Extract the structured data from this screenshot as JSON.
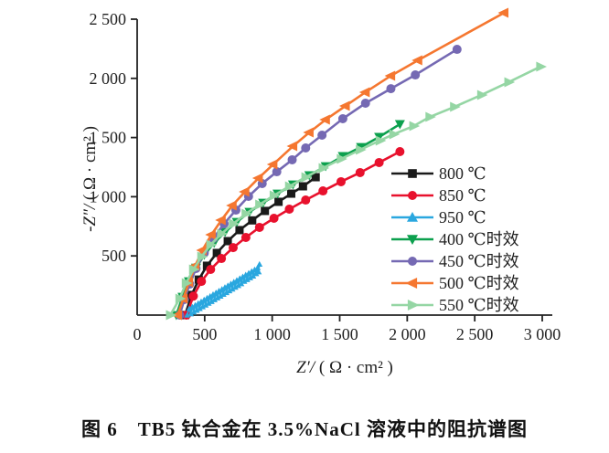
{
  "figure": {
    "caption": "图 6　TB5 钛合金在 3.5%NaCl 溶液中的阻抗谱图"
  },
  "chart_data": {
    "type": "line",
    "subtype": "nyquist-impedance-scatter",
    "title": "",
    "xlabel_symbol": "Z′/",
    "xlabel_unit": "( Ω · cm² )",
    "ylabel_symbol": "-Z″/",
    "ylabel_unit": "( Ω · cm² )",
    "xlim": [
      0,
      3050
    ],
    "ylim": [
      0,
      2520
    ],
    "grid": "off",
    "legend_position": "inside-right",
    "x_ticks": {
      "values": [
        0,
        500,
        1000,
        1500,
        2000,
        2500,
        3000
      ],
      "labels": [
        "0",
        "500",
        "1 000",
        "1 500",
        "2 000",
        "2 500",
        "3 000"
      ]
    },
    "y_ticks": {
      "values": [
        500,
        1000,
        1500,
        2000,
        2500
      ],
      "labels": [
        "500",
        "1 000",
        "1 500",
        "2 000",
        "2 500"
      ]
    },
    "series": [
      {
        "label": "800 ℃",
        "color": "#1a1a1a",
        "marker": "square",
        "size": 4.5,
        "points": [
          [
            355,
            0
          ],
          [
            403,
            170
          ],
          [
            456,
            300
          ],
          [
            517,
            417
          ],
          [
            590,
            525
          ],
          [
            671,
            625
          ],
          [
            758,
            718
          ],
          [
            852,
            800
          ],
          [
            946,
            880
          ],
          [
            1047,
            957
          ],
          [
            1141,
            1026
          ],
          [
            1228,
            1088
          ],
          [
            1322,
            1165
          ]
        ]
      },
      {
        "label": "850 ℃",
        "color": "#e8112d",
        "marker": "circle",
        "size": 5,
        "points": [
          [
            365,
            0
          ],
          [
            416,
            160
          ],
          [
            476,
            285
          ],
          [
            544,
            386
          ],
          [
            624,
            478
          ],
          [
            711,
            570
          ],
          [
            805,
            656
          ],
          [
            906,
            741
          ],
          [
            1013,
            818
          ],
          [
            1127,
            895
          ],
          [
            1248,
            972
          ],
          [
            1376,
            1049
          ],
          [
            1510,
            1127
          ],
          [
            1651,
            1204
          ],
          [
            1792,
            1289
          ],
          [
            1946,
            1381
          ]
        ]
      },
      {
        "label": "950 ℃",
        "color": "#2aa7df",
        "marker": "tri-up",
        "size": 3.4,
        "points": [
          [
            370,
            0
          ],
          [
            386,
            55
          ],
          [
            397,
            10
          ],
          [
            408,
            70
          ],
          [
            419,
            25
          ],
          [
            430,
            85
          ],
          [
            441,
            40
          ],
          [
            452,
            100
          ],
          [
            463,
            55
          ],
          [
            474,
            115
          ],
          [
            485,
            70
          ],
          [
            496,
            130
          ],
          [
            507,
            85
          ],
          [
            518,
            145
          ],
          [
            529,
            100
          ],
          [
            540,
            160
          ],
          [
            551,
            115
          ],
          [
            562,
            175
          ],
          [
            573,
            130
          ],
          [
            584,
            190
          ],
          [
            595,
            145
          ],
          [
            606,
            205
          ],
          [
            617,
            160
          ],
          [
            628,
            220
          ],
          [
            639,
            175
          ],
          [
            650,
            235
          ],
          [
            661,
            190
          ],
          [
            672,
            250
          ],
          [
            683,
            205
          ],
          [
            694,
            265
          ],
          [
            705,
            220
          ],
          [
            716,
            280
          ],
          [
            727,
            235
          ],
          [
            738,
            295
          ],
          [
            749,
            250
          ],
          [
            760,
            310
          ],
          [
            771,
            265
          ],
          [
            782,
            325
          ],
          [
            793,
            285
          ],
          [
            804,
            340
          ],
          [
            815,
            300
          ],
          [
            826,
            355
          ],
          [
            837,
            315
          ],
          [
            848,
            370
          ],
          [
            859,
            330
          ],
          [
            870,
            385
          ],
          [
            881,
            350
          ],
          [
            892,
            400
          ],
          [
            900,
            365
          ],
          [
            906,
            430
          ]
        ]
      },
      {
        "label": "400 ℃时效",
        "color": "#0ca04e",
        "marker": "tri-down",
        "size": 5.5,
        "points": [
          [
            290,
            0
          ],
          [
            336,
            154
          ],
          [
            383,
            285
          ],
          [
            436,
            400
          ],
          [
            497,
            509
          ],
          [
            570,
            610
          ],
          [
            651,
            702
          ],
          [
            738,
            787
          ],
          [
            832,
            872
          ],
          [
            933,
            949
          ],
          [
            1040,
            1026
          ],
          [
            1154,
            1103
          ],
          [
            1275,
            1181
          ],
          [
            1396,
            1258
          ],
          [
            1523,
            1343
          ],
          [
            1658,
            1420
          ],
          [
            1792,
            1505
          ],
          [
            1946,
            1613
          ]
        ]
      },
      {
        "label": "450 ℃时效",
        "color": "#7569b3",
        "marker": "circle",
        "size": 5,
        "points": [
          [
            315,
            0
          ],
          [
            349,
            131
          ],
          [
            389,
            262
          ],
          [
            436,
            394
          ],
          [
            497,
            525
          ],
          [
            564,
            648
          ],
          [
            644,
            772
          ],
          [
            731,
            887
          ],
          [
            825,
            1003
          ],
          [
            926,
            1111
          ],
          [
            1034,
            1211
          ],
          [
            1148,
            1312
          ],
          [
            1248,
            1412
          ],
          [
            1369,
            1520
          ],
          [
            1523,
            1659
          ],
          [
            1691,
            1790
          ],
          [
            1879,
            1913
          ],
          [
            2060,
            2029
          ],
          [
            2369,
            2245
          ]
        ]
      },
      {
        "label": "500 ℃时效",
        "color": "#f57730",
        "marker": "tri-left",
        "size": 5.5,
        "points": [
          [
            300,
            0
          ],
          [
            342,
            139
          ],
          [
            383,
            278
          ],
          [
            430,
            417
          ],
          [
            483,
            548
          ],
          [
            550,
            679
          ],
          [
            624,
            802
          ],
          [
            705,
            926
          ],
          [
            799,
            1042
          ],
          [
            899,
            1157
          ],
          [
            1007,
            1273
          ],
          [
            1154,
            1427
          ],
          [
            1275,
            1543
          ],
          [
            1396,
            1651
          ],
          [
            1543,
            1767
          ],
          [
            1691,
            1883
          ],
          [
            1879,
            2022
          ],
          [
            2080,
            2153
          ],
          [
            2718,
            2554
          ]
        ]
      },
      {
        "label": "550 ℃时效",
        "color": "#95d6a4",
        "marker": "tri-right",
        "size": 5.5,
        "points": [
          [
            245,
            0
          ],
          [
            315,
            139
          ],
          [
            362,
            270
          ],
          [
            416,
            386
          ],
          [
            477,
            494
          ],
          [
            544,
            594
          ],
          [
            624,
            687
          ],
          [
            711,
            772
          ],
          [
            805,
            856
          ],
          [
            906,
            934
          ],
          [
            1013,
            1011
          ],
          [
            1127,
            1088
          ],
          [
            1248,
            1165
          ],
          [
            1376,
            1242
          ],
          [
            1510,
            1319
          ],
          [
            1651,
            1397
          ],
          [
            1798,
            1474
          ],
          [
            1899,
            1528
          ],
          [
            2047,
            1597
          ],
          [
            2167,
            1674
          ],
          [
            2349,
            1759
          ],
          [
            2550,
            1860
          ],
          [
            2751,
            1968
          ],
          [
            2987,
            2099
          ]
        ]
      }
    ]
  }
}
